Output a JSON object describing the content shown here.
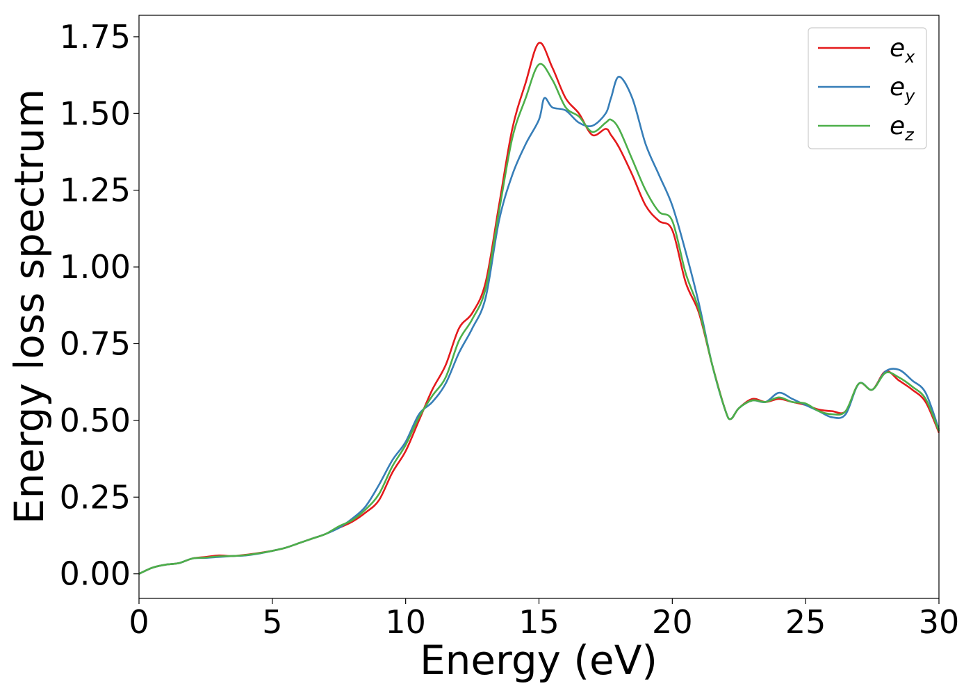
{
  "chart_data": {
    "type": "line",
    "xlabel": "Energy (eV)",
    "ylabel": "Energy loss spectrum",
    "xlim": [
      0,
      30
    ],
    "ylim": [
      -0.08,
      1.82
    ],
    "xticks": [
      0,
      5,
      10,
      15,
      20,
      25,
      30
    ],
    "xtick_labels": [
      "0",
      "5",
      "10",
      "15",
      "20",
      "25",
      "30"
    ],
    "yticks": [
      0.0,
      0.25,
      0.5,
      0.75,
      1.0,
      1.25,
      1.5,
      1.75
    ],
    "ytick_labels": [
      "0.00",
      "0.25",
      "0.50",
      "0.75",
      "1.00",
      "1.25",
      "1.50",
      "1.75"
    ],
    "grid": false,
    "legend_position": "top-right",
    "series": [
      {
        "name": "e",
        "subscript": "x",
        "color": "#e41a1c",
        "x": [
          0,
          0.5,
          1,
          1.5,
          2,
          2.5,
          3,
          3.5,
          4,
          4.5,
          5,
          5.5,
          6,
          6.5,
          7,
          7.5,
          8,
          8.5,
          9,
          9.5,
          10,
          10.5,
          11,
          11.5,
          12,
          12.5,
          13,
          13.5,
          14,
          14.5,
          15,
          15.5,
          16,
          16.5,
          17,
          17.5,
          17.7,
          18,
          18.5,
          19,
          19.5,
          20,
          20.5,
          21,
          21.5,
          22,
          22.2,
          22.5,
          23,
          23.5,
          24,
          24.5,
          25,
          25.5,
          26,
          26.5,
          27,
          27.5,
          28,
          28.5,
          29,
          29.5,
          30
        ],
        "y": [
          0,
          0.02,
          0.03,
          0.035,
          0.05,
          0.055,
          0.06,
          0.058,
          0.062,
          0.068,
          0.075,
          0.085,
          0.1,
          0.115,
          0.13,
          0.15,
          0.17,
          0.2,
          0.24,
          0.33,
          0.4,
          0.5,
          0.6,
          0.68,
          0.8,
          0.85,
          0.95,
          1.2,
          1.45,
          1.6,
          1.73,
          1.65,
          1.55,
          1.5,
          1.43,
          1.45,
          1.43,
          1.39,
          1.3,
          1.2,
          1.15,
          1.12,
          0.95,
          0.85,
          0.68,
          0.53,
          0.505,
          0.54,
          0.57,
          0.56,
          0.57,
          0.56,
          0.55,
          0.535,
          0.53,
          0.53,
          0.62,
          0.6,
          0.66,
          0.63,
          0.6,
          0.56,
          0.46
        ]
      },
      {
        "name": "e",
        "subscript": "y",
        "color": "#377eb8",
        "x": [
          0,
          0.5,
          1,
          1.5,
          2,
          2.5,
          3,
          3.5,
          4,
          4.5,
          5,
          5.5,
          6,
          6.5,
          7,
          7.5,
          8,
          8.5,
          9,
          9.5,
          10,
          10.5,
          11,
          11.5,
          12,
          12.5,
          13,
          13.5,
          14,
          14.5,
          15,
          15.2,
          15.5,
          16,
          16.5,
          17,
          17.5,
          17.7,
          18,
          18.5,
          19,
          19.5,
          20,
          20.5,
          21,
          21.5,
          22,
          22.2,
          22.5,
          23,
          23.5,
          24,
          24.5,
          25,
          25.5,
          26,
          26.5,
          27,
          27.5,
          28,
          28.5,
          29,
          29.5,
          30
        ],
        "y": [
          0,
          0.02,
          0.03,
          0.035,
          0.05,
          0.052,
          0.055,
          0.058,
          0.06,
          0.066,
          0.075,
          0.085,
          0.1,
          0.115,
          0.13,
          0.15,
          0.18,
          0.22,
          0.29,
          0.37,
          0.43,
          0.52,
          0.56,
          0.62,
          0.72,
          0.8,
          0.9,
          1.15,
          1.3,
          1.4,
          1.48,
          1.55,
          1.52,
          1.51,
          1.47,
          1.46,
          1.5,
          1.55,
          1.62,
          1.55,
          1.4,
          1.3,
          1.2,
          1.05,
          0.88,
          0.68,
          0.53,
          0.505,
          0.54,
          0.565,
          0.56,
          0.59,
          0.57,
          0.55,
          0.53,
          0.51,
          0.52,
          0.62,
          0.6,
          0.66,
          0.665,
          0.63,
          0.59,
          0.47
        ]
      },
      {
        "name": "e",
        "subscript": "z",
        "color": "#4daf4a",
        "x": [
          0,
          0.5,
          1,
          1.5,
          2,
          2.5,
          3,
          3.5,
          4,
          4.5,
          5,
          5.5,
          6,
          6.5,
          7,
          7.5,
          8,
          8.5,
          9,
          9.5,
          10,
          10.5,
          11,
          11.5,
          12,
          12.5,
          13,
          13.5,
          14,
          14.5,
          15,
          15.5,
          16,
          16.5,
          17,
          17.5,
          17.7,
          18,
          18.5,
          19,
          19.5,
          20,
          20.5,
          21,
          21.5,
          22,
          22.2,
          22.5,
          23,
          23.5,
          24,
          24.5,
          25,
          25.5,
          26,
          26.5,
          27,
          27.5,
          28,
          28.5,
          29,
          29.5,
          30
        ],
        "y": [
          0,
          0.02,
          0.03,
          0.035,
          0.05,
          0.053,
          0.057,
          0.058,
          0.061,
          0.067,
          0.075,
          0.085,
          0.1,
          0.115,
          0.13,
          0.155,
          0.175,
          0.21,
          0.26,
          0.35,
          0.42,
          0.51,
          0.58,
          0.64,
          0.76,
          0.83,
          0.93,
          1.18,
          1.42,
          1.55,
          1.66,
          1.61,
          1.52,
          1.49,
          1.44,
          1.47,
          1.48,
          1.45,
          1.35,
          1.25,
          1.18,
          1.15,
          0.98,
          0.86,
          0.68,
          0.53,
          0.505,
          0.54,
          0.565,
          0.56,
          0.575,
          0.56,
          0.555,
          0.53,
          0.52,
          0.53,
          0.62,
          0.6,
          0.655,
          0.64,
          0.61,
          0.57,
          0.465
        ]
      }
    ]
  }
}
